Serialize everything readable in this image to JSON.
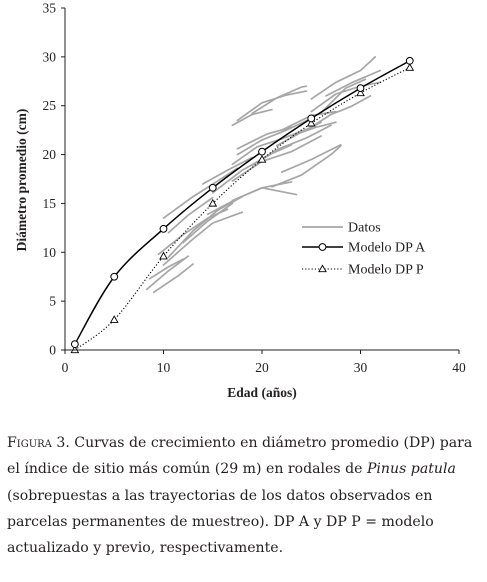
{
  "chart_data": {
    "type": "line",
    "xlabel": "Edad (años)",
    "ylabel": "Diámetro promedio (cm)",
    "xlim": [
      0,
      40
    ],
    "ylim": [
      0,
      35
    ],
    "x_ticks": [
      "0",
      "10",
      "20",
      "30",
      "40"
    ],
    "y_ticks": [
      "0",
      "5",
      "10",
      "15",
      "20",
      "25",
      "30",
      "35"
    ],
    "legend_position": "right-middle",
    "grid": false,
    "series": [
      {
        "name": "Datos",
        "style": "gray-lines",
        "color": "#a6a6a6",
        "trajectories": [
          [
            [
              8.3,
              6.2
            ],
            [
              10.5,
              8.1
            ],
            [
              12.5,
              9.6
            ]
          ],
          [
            [
              9.0,
              5.9
            ],
            [
              11.5,
              7.6
            ],
            [
              13.0,
              8.8
            ]
          ],
          [
            [
              8.6,
              7.3
            ],
            [
              10.5,
              8.5
            ],
            [
              12.0,
              9.3
            ]
          ],
          [
            [
              10.0,
              8.7
            ],
            [
              12.8,
              11.2
            ],
            [
              15.0,
              13.0
            ],
            [
              18.0,
              14.1
            ]
          ],
          [
            [
              9.5,
              9.8
            ],
            [
              12.0,
              11.8
            ],
            [
              14.5,
              13.5
            ],
            [
              16.5,
              14.4
            ]
          ],
          [
            [
              10.5,
              9.5
            ],
            [
              13.0,
              12.2
            ],
            [
              15.5,
              14.3
            ],
            [
              18.0,
              15.7
            ]
          ],
          [
            [
              10.0,
              13.5
            ],
            [
              13.0,
              15.7
            ],
            [
              15.5,
              17.3
            ],
            [
              17.5,
              18.6
            ]
          ],
          [
            [
              10.5,
              12.0
            ],
            [
              12.5,
              13.8
            ],
            [
              15.0,
              15.6
            ]
          ],
          [
            [
              12.0,
              11.0
            ],
            [
              14.5,
              13.2
            ],
            [
              17.0,
              15.0
            ]
          ],
          [
            [
              14.5,
              13.9
            ],
            [
              17.5,
              15.5
            ],
            [
              20.0,
              16.6
            ],
            [
              23.0,
              17.2
            ]
          ],
          [
            [
              15.0,
              16.1
            ],
            [
              18.0,
              18.4
            ],
            [
              21.0,
              20.1
            ],
            [
              23.0,
              21.0
            ]
          ],
          [
            [
              14.0,
              17.0
            ],
            [
              16.5,
              18.4
            ],
            [
              19.0,
              19.7
            ]
          ],
          [
            [
              17.0,
              15.3
            ],
            [
              20.0,
              16.6
            ],
            [
              23.5,
              15.9
            ]
          ],
          [
            [
              17.0,
              17.3
            ],
            [
              20.0,
              19.3
            ],
            [
              23.0,
              20.3
            ],
            [
              26.0,
              21.9
            ]
          ],
          [
            [
              19.0,
              18.9
            ],
            [
              21.5,
              20.5
            ],
            [
              24.5,
              21.7
            ],
            [
              27.0,
              23.0
            ]
          ],
          [
            [
              17.0,
              19.0
            ],
            [
              19.5,
              20.8
            ],
            [
              22.0,
              21.6
            ],
            [
              24.5,
              22.6
            ]
          ],
          [
            [
              17.5,
              20.6
            ],
            [
              20.5,
              22.1
            ],
            [
              23.0,
              22.8
            ]
          ],
          [
            [
              17.5,
              20.0
            ],
            [
              20.0,
              21.5
            ],
            [
              22.5,
              22.5
            ],
            [
              25.0,
              23.7
            ]
          ],
          [
            [
              21.0,
              16.7
            ],
            [
              24.0,
              17.9
            ],
            [
              27.0,
              20.0
            ],
            [
              28.0,
              20.9
            ]
          ],
          [
            [
              22.0,
              18.2
            ],
            [
              25.0,
              19.5
            ],
            [
              28.0,
              21.0
            ]
          ],
          [
            [
              17.0,
              23.0
            ],
            [
              19.0,
              24.1
            ],
            [
              21.0,
              24.6
            ]
          ],
          [
            [
              17.5,
              23.5
            ],
            [
              20.0,
              25.3
            ],
            [
              22.5,
              26.1
            ],
            [
              24.5,
              26.5
            ]
          ],
          [
            [
              19.0,
              24.2
            ],
            [
              21.5,
              25.8
            ],
            [
              24.0,
              26.9
            ],
            [
              24.5,
              27.0
            ]
          ],
          [
            [
              21.5,
              20.9
            ],
            [
              24.0,
              22.3
            ],
            [
              26.0,
              23.3
            ]
          ],
          [
            [
              22.0,
              22.5
            ],
            [
              25.0,
              24.0
            ],
            [
              27.5,
              24.4
            ]
          ],
          [
            [
              23.0,
              21.9
            ],
            [
              25.5,
              22.8
            ],
            [
              27.5,
              23.3
            ]
          ],
          [
            [
              24.5,
              22.5
            ],
            [
              27.0,
              24.1
            ],
            [
              29.0,
              24.9
            ],
            [
              31.0,
              26.0
            ]
          ],
          [
            [
              25.0,
              24.4
            ],
            [
              27.5,
              26.2
            ],
            [
              30.0,
              27.0
            ],
            [
              32.0,
              27.4
            ]
          ],
          [
            [
              25.0,
              25.7
            ],
            [
              27.5,
              27.4
            ],
            [
              30.0,
              28.6
            ],
            [
              31.5,
              30.0
            ]
          ],
          [
            [
              26.0,
              24.3
            ],
            [
              28.5,
              26.8
            ],
            [
              30.5,
              27.7
            ]
          ],
          [
            [
              26.5,
              26.0
            ],
            [
              29.0,
              27.3
            ],
            [
              32.0,
              28.6
            ]
          ]
        ]
      },
      {
        "name": "Modelo DP A",
        "style": "solid-line-circle-markers",
        "color": "#000000",
        "x": [
          1,
          5,
          10,
          15,
          20,
          25,
          30,
          35
        ],
        "y": [
          0.6,
          7.5,
          12.4,
          16.6,
          20.3,
          23.7,
          26.8,
          29.6
        ]
      },
      {
        "name": "Modelo DP P",
        "style": "dotted-line-triangle-markers",
        "color": "#000000",
        "x": [
          1,
          5,
          10,
          15,
          20,
          25,
          30,
          35
        ],
        "y": [
          0.0,
          3.1,
          9.6,
          15.0,
          19.5,
          23.2,
          26.3,
          28.9
        ]
      }
    ]
  },
  "caption": {
    "label": "Figura 3.",
    "text_1": " Curvas de crecimiento en diámetro promedio (",
    "abbr_dp": "DP",
    "text_2": ") para el índice de sitio más común (29 m) en rodales de ",
    "species": "Pinus patula",
    "text_3": " (sobrepuestas a las trayectorias de los datos observados en parcelas permanentes de muestreo). ",
    "abbr_dpa": "DP A",
    "text_4": " y ",
    "abbr_dpp": "DP P",
    "text_5": " = modelo actualizado y previo, respectivamente."
  }
}
